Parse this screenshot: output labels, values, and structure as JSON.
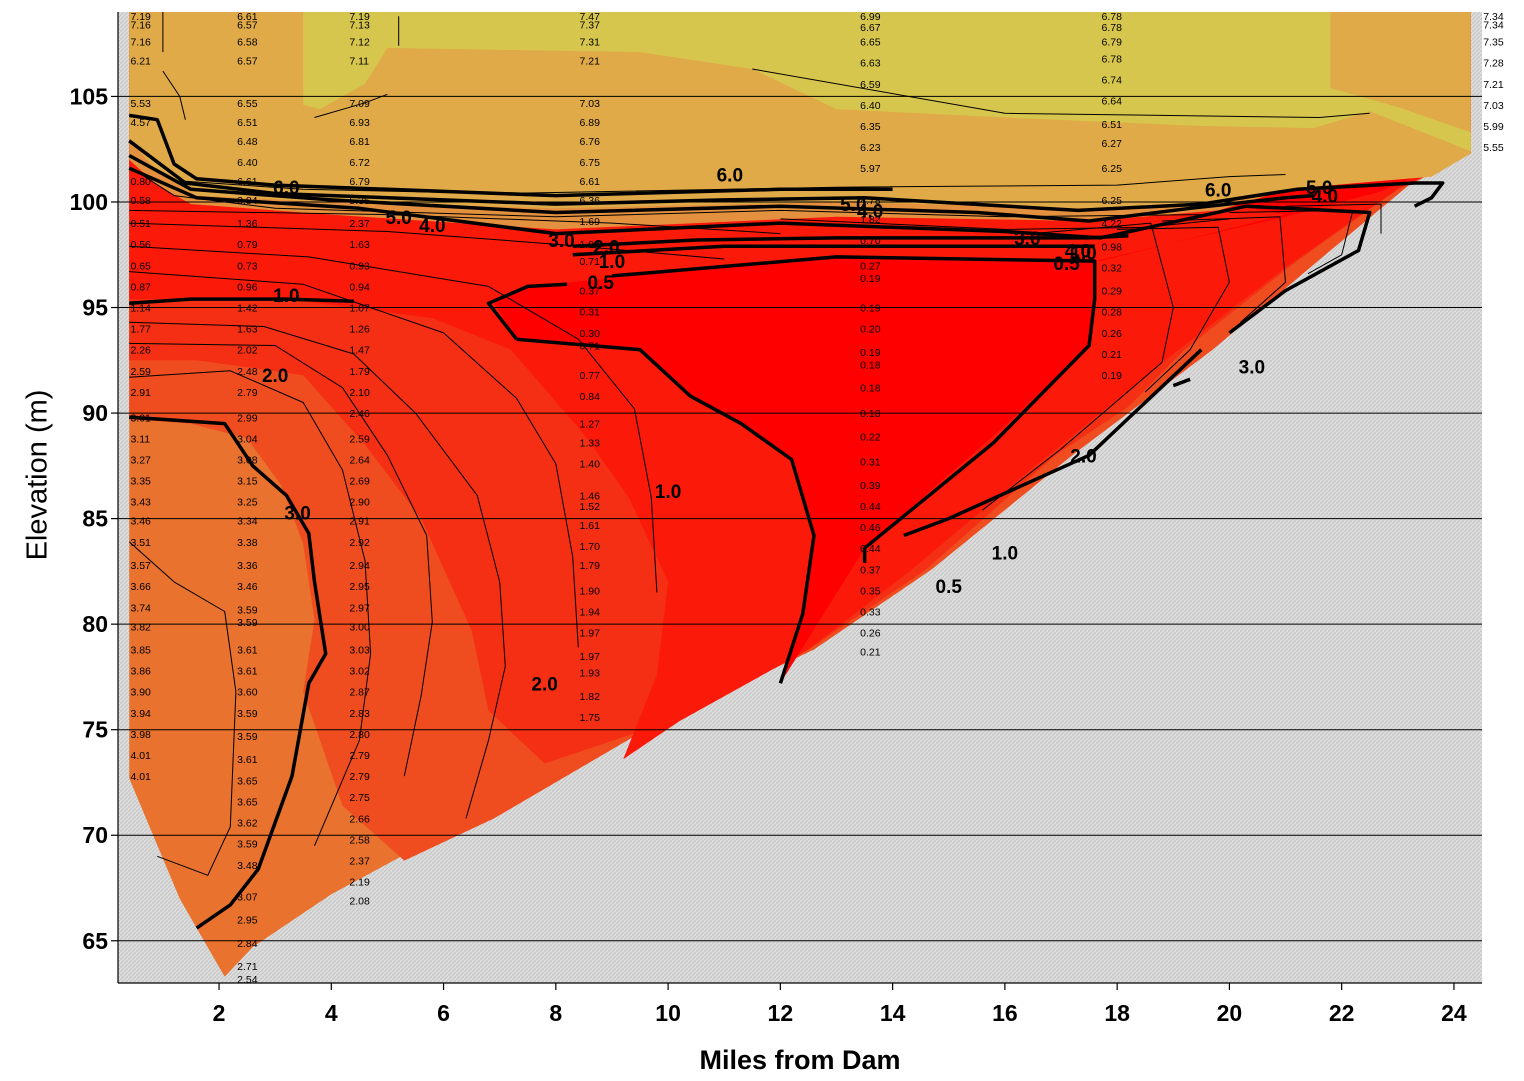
{
  "chart_data": {
    "type": "contour",
    "xlabel": "Miles from Dam",
    "ylabel": "Elevation (m)",
    "xlim": [
      0.2,
      24.5
    ],
    "ylim": [
      63,
      109
    ],
    "xticks": [
      2,
      4,
      6,
      8,
      10,
      12,
      14,
      16,
      18,
      20,
      22,
      24
    ],
    "yticks": [
      65,
      70,
      75,
      80,
      85,
      90,
      95,
      100,
      105
    ],
    "grid": "horizontal",
    "colors": {
      "band_above_6": "#d7c64e",
      "band_5_6": "#dfaa47",
      "band_4_5": "#e3913e",
      "band_3_4": "#e8722e",
      "band_2_3": "#ef4d20",
      "band_1_2": "#f42f13",
      "band_0_5_1": "#fb1a0a",
      "band_below_0_5": "#ff0000",
      "bottom": "#dcdcdc"
    },
    "contour_levels": [
      "0.5",
      "1.0",
      "2.0",
      "3.0",
      "4.0",
      "5.0",
      "6.0"
    ],
    "contour_labels": [
      {
        "text": "6.0",
        "x": 3.2,
        "y": 100.7
      },
      {
        "text": "5.0",
        "x": 5.2,
        "y": 99.3
      },
      {
        "text": "4.0",
        "x": 5.8,
        "y": 98.9
      },
      {
        "text": "1.0",
        "x": 3.2,
        "y": 95.6
      },
      {
        "text": "2.0",
        "x": 3.0,
        "y": 91.8
      },
      {
        "text": "3.0",
        "x": 3.4,
        "y": 85.3
      },
      {
        "text": "3.0",
        "x": 8.1,
        "y": 98.2
      },
      {
        "text": "2.0",
        "x": 8.9,
        "y": 97.9
      },
      {
        "text": "1.0",
        "x": 9.0,
        "y": 97.2
      },
      {
        "text": "0.5",
        "x": 8.8,
        "y": 96.2
      },
      {
        "text": "1.0",
        "x": 10.0,
        "y": 86.3
      },
      {
        "text": "2.0",
        "x": 7.8,
        "y": 77.2
      },
      {
        "text": "6.0",
        "x": 11.1,
        "y": 101.3
      },
      {
        "text": "5.0",
        "x": 13.3,
        "y": 99.9
      },
      {
        "text": "4.0",
        "x": 13.6,
        "y": 99.6
      },
      {
        "text": "3.0",
        "x": 16.4,
        "y": 98.3
      },
      {
        "text": "4.0",
        "x": 17.3,
        "y": 97.7
      },
      {
        "text": "1.0",
        "x": 17.4,
        "y": 97.6
      },
      {
        "text": "0.5",
        "x": 17.1,
        "y": 97.1
      },
      {
        "text": "0.5",
        "x": 15.0,
        "y": 81.8
      },
      {
        "text": "1.0",
        "x": 16.0,
        "y": 83.4
      },
      {
        "text": "2.0",
        "x": 17.4,
        "y": 88.0
      },
      {
        "text": "3.0",
        "x": 20.4,
        "y": 92.2
      },
      {
        "text": "6.0",
        "x": 19.8,
        "y": 100.6
      },
      {
        "text": "5.0",
        "x": 21.6,
        "y": 100.7
      },
      {
        "text": "4.0",
        "x": 21.7,
        "y": 100.3
      }
    ],
    "value_columns": [
      {
        "x": 0.6,
        "points": [
          {
            "v": "7.19",
            "y": 108.8
          },
          {
            "v": "7.16",
            "y": 108.4
          },
          {
            "v": "7.16",
            "y": 107.6
          },
          {
            "v": "6.21",
            "y": 106.7
          },
          {
            "v": "5.53",
            "y": 104.7
          },
          {
            "v": "4.57",
            "y": 103.8
          },
          {
            "v": "0.80",
            "y": 101.0
          },
          {
            "v": "0.58",
            "y": 100.1
          },
          {
            "v": "0.51",
            "y": 99.0
          },
          {
            "v": "0.56",
            "y": 98.0
          },
          {
            "v": "0.65",
            "y": 97.0
          },
          {
            "v": "0.87",
            "y": 96.0
          },
          {
            "v": "1.14",
            "y": 95.0
          },
          {
            "v": "1.77",
            "y": 94.0
          },
          {
            "v": "2.26",
            "y": 93.0
          },
          {
            "v": "2.59",
            "y": 92.0
          },
          {
            "v": "2.91",
            "y": 91.0
          },
          {
            "v": "3.01",
            "y": 89.8
          },
          {
            "v": "3.11",
            "y": 88.8
          },
          {
            "v": "3.27",
            "y": 87.8
          },
          {
            "v": "3.35",
            "y": 86.8
          },
          {
            "v": "3.43",
            "y": 85.8
          },
          {
            "v": "3.46",
            "y": 84.9
          },
          {
            "v": "3.51",
            "y": 83.9
          },
          {
            "v": "3.57",
            "y": 82.8
          },
          {
            "v": "3.66",
            "y": 81.8
          },
          {
            "v": "3.74",
            "y": 80.8
          },
          {
            "v": "3.82",
            "y": 79.9
          },
          {
            "v": "3.85",
            "y": 78.8
          },
          {
            "v": "3.86",
            "y": 77.8
          },
          {
            "v": "3.90",
            "y": 76.8
          },
          {
            "v": "3.94",
            "y": 75.8
          },
          {
            "v": "3.98",
            "y": 74.8
          },
          {
            "v": "4.01",
            "y": 73.8
          },
          {
            "v": "4.01",
            "y": 72.8
          }
        ]
      },
      {
        "x": 2.5,
        "points": [
          {
            "v": "6.61",
            "y": 108.8
          },
          {
            "v": "6.57",
            "y": 108.4
          },
          {
            "v": "6.58",
            "y": 107.6
          },
          {
            "v": "6.57",
            "y": 106.7
          },
          {
            "v": "6.55",
            "y": 104.7
          },
          {
            "v": "6.51",
            "y": 103.8
          },
          {
            "v": "6.48",
            "y": 102.9
          },
          {
            "v": "6.40",
            "y": 101.9
          },
          {
            "v": "6.61",
            "y": 101.0
          },
          {
            "v": "3.84",
            "y": 100.1
          },
          {
            "v": "1.36",
            "y": 99.0
          },
          {
            "v": "0.79",
            "y": 98.0
          },
          {
            "v": "0.73",
            "y": 97.0
          },
          {
            "v": "0.96",
            "y": 96.0
          },
          {
            "v": "1.42",
            "y": 95.0
          },
          {
            "v": "1.63",
            "y": 94.0
          },
          {
            "v": "2.02",
            "y": 93.0
          },
          {
            "v": "2.48",
            "y": 92.0
          },
          {
            "v": "2.79",
            "y": 91.0
          },
          {
            "v": "2.99",
            "y": 89.8
          },
          {
            "v": "3.04",
            "y": 88.8
          },
          {
            "v": "3.08",
            "y": 87.8
          },
          {
            "v": "3.15",
            "y": 86.8
          },
          {
            "v": "3.25",
            "y": 85.8
          },
          {
            "v": "3.34",
            "y": 84.9
          },
          {
            "v": "3.38",
            "y": 83.9
          },
          {
            "v": "3.36",
            "y": 82.8
          },
          {
            "v": "3.46",
            "y": 81.8
          },
          {
            "v": "3.59",
            "y": 80.7
          },
          {
            "v": "3.59",
            "y": 80.1
          },
          {
            "v": "3.61",
            "y": 78.8
          },
          {
            "v": "3.61",
            "y": 77.8
          },
          {
            "v": "3.60",
            "y": 76.8
          },
          {
            "v": "3.59",
            "y": 75.8
          },
          {
            "v": "3.59",
            "y": 74.7
          },
          {
            "v": "3.61",
            "y": 73.6
          },
          {
            "v": "3.65",
            "y": 72.6
          },
          {
            "v": "3.65",
            "y": 71.6
          },
          {
            "v": "3.62",
            "y": 70.6
          },
          {
            "v": "3.59",
            "y": 69.6
          },
          {
            "v": "3.48",
            "y": 68.6
          },
          {
            "v": "3.07",
            "y": 67.1
          },
          {
            "v": "2.95",
            "y": 66.0
          },
          {
            "v": "2.84",
            "y": 64.9
          },
          {
            "v": "2.71",
            "y": 63.8
          },
          {
            "v": "2.54",
            "y": 63.2
          }
        ]
      },
      {
        "x": 4.5,
        "points": [
          {
            "v": "7.19",
            "y": 108.8
          },
          {
            "v": "7.13",
            "y": 108.4
          },
          {
            "v": "7.12",
            "y": 107.6
          },
          {
            "v": "7.11",
            "y": 106.7
          },
          {
            "v": "7.09",
            "y": 104.7
          },
          {
            "v": "6.93",
            "y": 103.8
          },
          {
            "v": "6.81",
            "y": 102.9
          },
          {
            "v": "6.72",
            "y": 101.9
          },
          {
            "v": "6.79",
            "y": 101.0
          },
          {
            "v": "5.35",
            "y": 100.1
          },
          {
            "v": "2.37",
            "y": 99.0
          },
          {
            "v": "1.63",
            "y": 98.0
          },
          {
            "v": "0.93",
            "y": 97.0
          },
          {
            "v": "0.94",
            "y": 96.0
          },
          {
            "v": "1.07",
            "y": 95.0
          },
          {
            "v": "1.26",
            "y": 94.0
          },
          {
            "v": "1.47",
            "y": 93.0
          },
          {
            "v": "1.79",
            "y": 92.0
          },
          {
            "v": "2.10",
            "y": 91.0
          },
          {
            "v": "2.46",
            "y": 90.0
          },
          {
            "v": "2.59",
            "y": 88.8
          },
          {
            "v": "2.64",
            "y": 87.8
          },
          {
            "v": "2.69",
            "y": 86.8
          },
          {
            "v": "2.90",
            "y": 85.8
          },
          {
            "v": "2.91",
            "y": 84.9
          },
          {
            "v": "2.92",
            "y": 83.9
          },
          {
            "v": "2.94",
            "y": 82.8
          },
          {
            "v": "2.95",
            "y": 81.8
          },
          {
            "v": "2.97",
            "y": 80.8
          },
          {
            "v": "3.00",
            "y": 79.9
          },
          {
            "v": "3.03",
            "y": 78.8
          },
          {
            "v": "3.02",
            "y": 77.8
          },
          {
            "v": "2.87",
            "y": 76.8
          },
          {
            "v": "2.83",
            "y": 75.8
          },
          {
            "v": "2.80",
            "y": 74.8
          },
          {
            "v": "2.79",
            "y": 73.8
          },
          {
            "v": "2.79",
            "y": 72.8
          },
          {
            "v": "2.75",
            "y": 71.8
          },
          {
            "v": "2.66",
            "y": 70.8
          },
          {
            "v": "2.58",
            "y": 69.8
          },
          {
            "v": "2.37",
            "y": 68.8
          },
          {
            "v": "2.19",
            "y": 67.8
          },
          {
            "v": "2.08",
            "y": 66.9
          }
        ]
      },
      {
        "x": 8.6,
        "points": [
          {
            "v": "7.47",
            "y": 108.8
          },
          {
            "v": "7.37",
            "y": 108.4
          },
          {
            "v": "7.31",
            "y": 107.6
          },
          {
            "v": "7.21",
            "y": 106.7
          },
          {
            "v": "7.03",
            "y": 104.7
          },
          {
            "v": "6.89",
            "y": 103.8
          },
          {
            "v": "6.76",
            "y": 102.9
          },
          {
            "v": "6.75",
            "y": 101.9
          },
          {
            "v": "6.61",
            "y": 101.0
          },
          {
            "v": "6.36",
            "y": 100.1
          },
          {
            "v": "1.69",
            "y": 99.1
          },
          {
            "v": "1.04",
            "y": 98.0
          },
          {
            "v": "0.71",
            "y": 97.2
          },
          {
            "v": "0.37",
            "y": 95.8
          },
          {
            "v": "0.31",
            "y": 94.8
          },
          {
            "v": "0.30",
            "y": 93.8
          },
          {
            "v": "0.71",
            "y": 93.2
          },
          {
            "v": "0.77",
            "y": 91.8
          },
          {
            "v": "0.84",
            "y": 90.8
          },
          {
            "v": "1.27",
            "y": 89.5
          },
          {
            "v": "1.33",
            "y": 88.6
          },
          {
            "v": "1.40",
            "y": 87.6
          },
          {
            "v": "1.46",
            "y": 86.1
          },
          {
            "v": "1.52",
            "y": 85.6
          },
          {
            "v": "1.61",
            "y": 84.7
          },
          {
            "v": "1.70",
            "y": 83.7
          },
          {
            "v": "1.79",
            "y": 82.8
          },
          {
            "v": "1.90",
            "y": 81.6
          },
          {
            "v": "1.94",
            "y": 80.6
          },
          {
            "v": "1.97",
            "y": 79.6
          },
          {
            "v": "1.97",
            "y": 78.5
          },
          {
            "v": "1.93",
            "y": 77.7
          },
          {
            "v": "1.82",
            "y": 76.6
          },
          {
            "v": "1.75",
            "y": 75.6
          }
        ]
      },
      {
        "x": 13.6,
        "points": [
          {
            "v": "6.99",
            "y": 108.8
          },
          {
            "v": "6.67",
            "y": 108.3
          },
          {
            "v": "6.65",
            "y": 107.6
          },
          {
            "v": "6.63",
            "y": 106.6
          },
          {
            "v": "6.59",
            "y": 105.6
          },
          {
            "v": "6.40",
            "y": 104.6
          },
          {
            "v": "6.35",
            "y": 103.6
          },
          {
            "v": "6.23",
            "y": 102.6
          },
          {
            "v": "5.97",
            "y": 101.6
          },
          {
            "v": "4.78",
            "y": 100.1
          },
          {
            "v": "1.82",
            "y": 99.2
          },
          {
            "v": "0.70",
            "y": 98.2
          },
          {
            "v": "0.27",
            "y": 97.0
          },
          {
            "v": "0.19",
            "y": 96.4
          },
          {
            "v": "0.19",
            "y": 95.0
          },
          {
            "v": "0.20",
            "y": 94.0
          },
          {
            "v": "0.19",
            "y": 92.9
          },
          {
            "v": "0.18",
            "y": 92.3
          },
          {
            "v": "0.18",
            "y": 91.2
          },
          {
            "v": "0.18",
            "y": 90.0
          },
          {
            "v": "0.22",
            "y": 88.9
          },
          {
            "v": "0.31",
            "y": 87.7
          },
          {
            "v": "0.39",
            "y": 86.6
          },
          {
            "v": "0.44",
            "y": 85.6
          },
          {
            "v": "0.46",
            "y": 84.6
          },
          {
            "v": "0.44",
            "y": 83.6
          },
          {
            "v": "0.37",
            "y": 82.6
          },
          {
            "v": "0.35",
            "y": 81.6
          },
          {
            "v": "0.33",
            "y": 80.6
          },
          {
            "v": "0.26",
            "y": 79.6
          },
          {
            "v": "0.21",
            "y": 78.7
          }
        ]
      },
      {
        "x": 17.9,
        "points": [
          {
            "v": "6.78",
            "y": 108.8
          },
          {
            "v": "6.78",
            "y": 108.3
          },
          {
            "v": "6.79",
            "y": 107.6
          },
          {
            "v": "6.78",
            "y": 106.8
          },
          {
            "v": "6.74",
            "y": 105.8
          },
          {
            "v": "6.64",
            "y": 104.8
          },
          {
            "v": "6.51",
            "y": 103.7
          },
          {
            "v": "6.27",
            "y": 102.8
          },
          {
            "v": "6.25",
            "y": 101.6
          },
          {
            "v": "6.25",
            "y": 100.1
          },
          {
            "v": "4.22",
            "y": 99.0
          },
          {
            "v": "0.98",
            "y": 97.9
          },
          {
            "v": "0.32",
            "y": 96.9
          },
          {
            "v": "0.29",
            "y": 95.8
          },
          {
            "v": "0.28",
            "y": 94.8
          },
          {
            "v": "0.26",
            "y": 93.8
          },
          {
            "v": "0.21",
            "y": 92.8
          },
          {
            "v": "0.19",
            "y": 91.8
          }
        ]
      },
      {
        "x": 24.7,
        "points": [
          {
            "v": "7.34",
            "y": 108.8
          },
          {
            "v": "7.34",
            "y": 108.4
          },
          {
            "v": "7.35",
            "y": 107.6
          },
          {
            "v": "7.28",
            "y": 106.6
          },
          {
            "v": "7.21",
            "y": 105.6
          },
          {
            "v": "7.03",
            "y": 104.6
          },
          {
            "v": "5.99",
            "y": 103.6
          },
          {
            "v": "5.55",
            "y": 102.6
          }
        ]
      }
    ]
  }
}
